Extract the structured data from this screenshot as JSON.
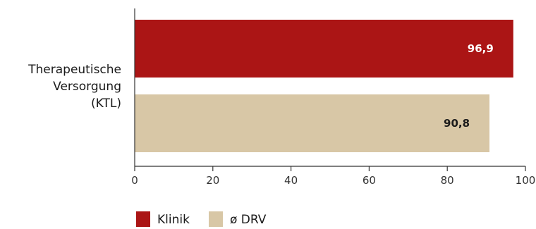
{
  "chart_data": {
    "type": "bar",
    "orientation": "horizontal",
    "categories": [
      "Therapeutische Versorgung (KTL)"
    ],
    "category_label_lines": [
      "Therapeutische",
      "Versorgung",
      "(KTL)"
    ],
    "series": [
      {
        "name": "Klinik",
        "values": [
          96.9
        ],
        "value_labels": [
          "96,9"
        ],
        "color": "#ab1515",
        "label_color": "#ffffff"
      },
      {
        "name": "ø DRV",
        "values": [
          90.8
        ],
        "value_labels": [
          "90,8"
        ],
        "color": "#d8c7a6",
        "label_color": "#1a1a1a"
      }
    ],
    "xlim": [
      0,
      100
    ],
    "x_ticks": [
      0,
      20,
      40,
      60,
      80,
      100
    ],
    "x_tick_labels": [
      "0",
      "20",
      "40",
      "60",
      "80",
      "100"
    ],
    "xlabel": "",
    "ylabel": "",
    "title": "",
    "grid": false,
    "legend": "bottom-left"
  }
}
